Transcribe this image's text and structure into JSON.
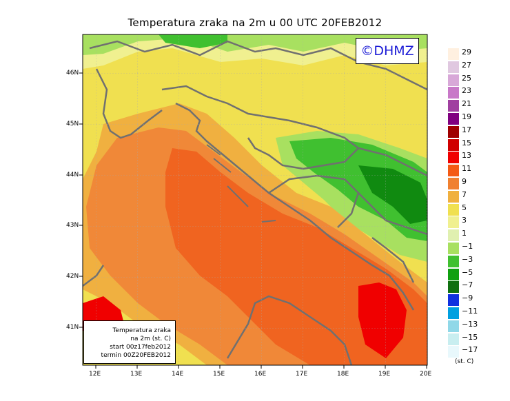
{
  "title": "Temperatura zraka na 2m u 00 UTC 20FEB2012",
  "logo": "©DHMZ",
  "info_box": {
    "line1": "Temperatura zraka",
    "line2": "na 2m (st. C)",
    "line3": "start 00z17feb2012",
    "line4": "termin 00Z20FEB2012"
  },
  "lat_labels": [
    "46N",
    "45N",
    "44N",
    "43N",
    "42N",
    "41N"
  ],
  "lon_labels": [
    "12E",
    "13E",
    "14E",
    "15E",
    "16E",
    "17E",
    "18E",
    "19E",
    "20E"
  ],
  "legend": {
    "units": "(st. C)",
    "labels": [
      "29",
      "27",
      "25",
      "23",
      "21",
      "19",
      "17",
      "15",
      "13",
      "11",
      "9",
      "7",
      "5",
      "3",
      "1",
      "−1",
      "−3",
      "−5",
      "−7",
      "−9",
      "−11",
      "−13",
      "−15",
      "−17"
    ],
    "colors": [
      "#fff0e0",
      "#e0c8e0",
      "#d8a8d8",
      "#c878c8",
      "#a040a0",
      "#800080",
      "#a00000",
      "#d00000",
      "#f00000",
      "#f45a14",
      "#f08030",
      "#f0b040",
      "#f0e050",
      "#f0f090",
      "#e0f0b0",
      "#a8e060",
      "#40c030",
      "#10a010",
      "#107010",
      "#1030e0",
      "#00a0e0",
      "#90d8e8",
      "#c8eef0",
      "#e8f8fc"
    ]
  },
  "colors": {
    "sea_warm": "#f06420",
    "sea_mid": "#f08838",
    "coast": "#f0b040",
    "land_mild": "#f0e050",
    "land_pale": "#f0f090",
    "green_light": "#a8e060",
    "green": "#40c030",
    "green_dark": "#108a10",
    "red": "#f00000",
    "border": "#707070"
  }
}
